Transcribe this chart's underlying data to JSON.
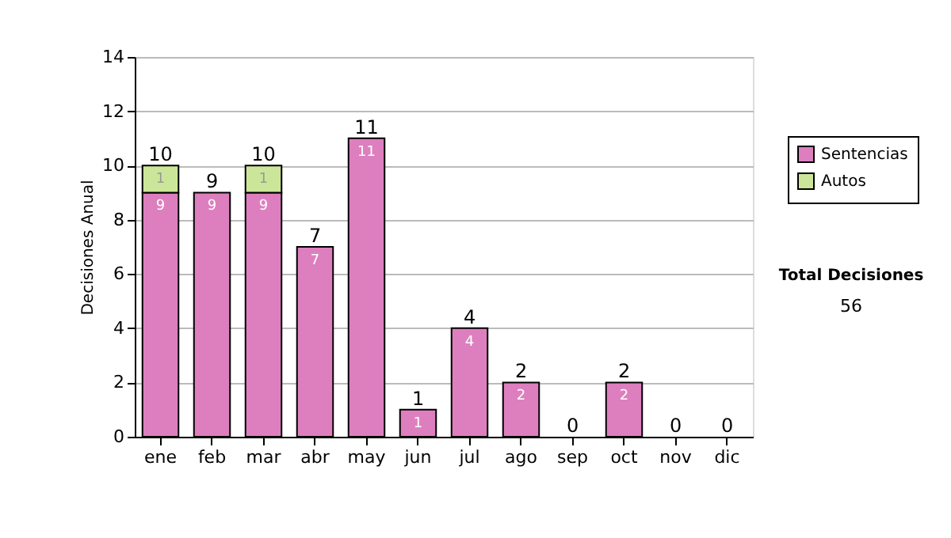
{
  "chart_data": {
    "type": "bar",
    "stacked": true,
    "ylabel": "Decisiones Anual",
    "categories": [
      "ene",
      "feb",
      "mar",
      "abr",
      "may",
      "jun",
      "jul",
      "ago",
      "sep",
      "oct",
      "nov",
      "dic"
    ],
    "series": [
      {
        "name": "Sentencias",
        "color": "#dd7fbf",
        "values": [
          9,
          9,
          9,
          7,
          11,
          1,
          4,
          2,
          0,
          2,
          0,
          0
        ],
        "value_labels": [
          "9",
          "9",
          "9",
          "7",
          "11",
          "1",
          "4",
          "2",
          null,
          "2",
          null,
          null
        ]
      },
      {
        "name": "Autos",
        "color": "#cce699",
        "values": [
          1,
          0,
          1,
          0,
          0,
          0,
          0,
          0,
          0,
          0,
          0,
          0
        ],
        "value_labels": [
          "1",
          null,
          "1",
          null,
          null,
          null,
          null,
          null,
          null,
          null,
          null,
          null
        ]
      }
    ],
    "totals": [
      "10",
      "9",
      "10",
      "7",
      "11",
      "1",
      "4",
      "2",
      "0",
      "2",
      "0",
      "0"
    ],
    "ylim": [
      0,
      14
    ],
    "yticks": [
      0,
      2,
      4,
      6,
      8,
      10,
      12,
      14
    ],
    "grid": "y",
    "legend": "right",
    "annotations": [
      "Total Decisiones",
      "56"
    ]
  }
}
